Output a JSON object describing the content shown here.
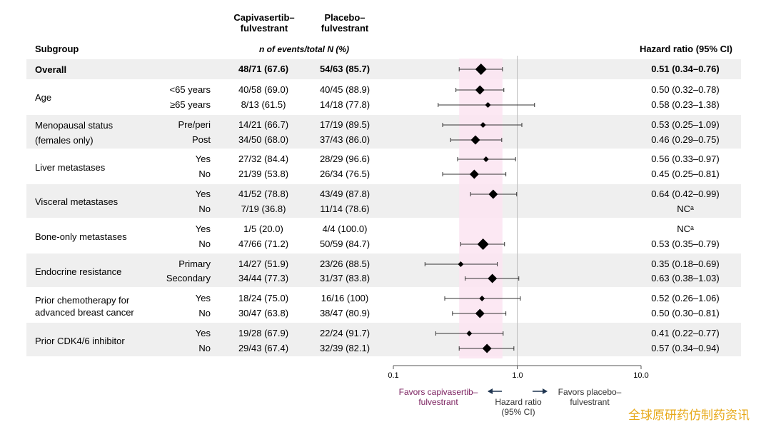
{
  "header": {
    "capi_line1": "Capivasertib–",
    "capi_line2": "fulvestrant",
    "plac_line1": "Placebo–",
    "plac_line2": "fulvestrant",
    "subgroup": "Subgroup",
    "events_label": "n of events/total N (%)",
    "hr_label": "Hazard ratio (95% CI)"
  },
  "colors": {
    "band": "#efefef",
    "shade": "#fbe4f1",
    "favors_capi": "#7a1f5e",
    "arrow": "#1f3550",
    "watermark": "#e7a817"
  },
  "chart_data": {
    "type": "forest",
    "xscale": "log",
    "xlim": [
      0.1,
      10.0
    ],
    "reference_line": 1.0,
    "shaded_band": [
      0.34,
      0.76
    ],
    "axis_ticks": [
      "0.1",
      "1.0",
      "10.0"
    ],
    "axis_title": [
      "Hazard ratio",
      "(95% CI)"
    ],
    "favors_left": [
      "Favors capivasertib–",
      "fulvestrant"
    ],
    "favors_right": [
      "Favors placebo–",
      "fulvestrant"
    ],
    "rows": [
      {
        "group": "Overall",
        "sub": "",
        "capi": "48/71 (67.6)",
        "plac": "54/63 (85.7)",
        "hr_text": "0.51 (0.34–0.76)",
        "hr": 0.51,
        "lo": 0.34,
        "hi": 0.76,
        "bold": true,
        "marker": "large"
      },
      {
        "group": "Age",
        "sub": "<65 years",
        "capi": "40/58 (69.0)",
        "plac": "40/45 (88.9)",
        "hr_text": "0.50 (0.32–0.78)",
        "hr": 0.5,
        "lo": 0.32,
        "hi": 0.78,
        "marker": "medium"
      },
      {
        "group": "",
        "sub": "≥65 years",
        "capi": "8/13 (61.5)",
        "plac": "14/18 (77.8)",
        "hr_text": "0.58 (0.23–1.38)",
        "hr": 0.58,
        "lo": 0.23,
        "hi": 1.38,
        "marker": "small"
      },
      {
        "group": "Menopausal status",
        "sub": "Pre/peri",
        "capi": "14/21 (66.7)",
        "plac": "17/19 (89.5)",
        "hr_text": "0.53 (0.25–1.09)",
        "hr": 0.53,
        "lo": 0.25,
        "hi": 1.09,
        "marker": "small"
      },
      {
        "group": "(females only)",
        "sub": "Post",
        "capi": "34/50 (68.0)",
        "plac": "37/43 (86.0)",
        "hr_text": "0.46 (0.29–0.75)",
        "hr": 0.46,
        "lo": 0.29,
        "hi": 0.75,
        "marker": "medium"
      },
      {
        "group": "Liver metastases",
        "sub": "Yes",
        "capi": "27/32 (84.4)",
        "plac": "28/29 (96.6)",
        "hr_text": "0.56 (0.33–0.97)",
        "hr": 0.56,
        "lo": 0.33,
        "hi": 0.97,
        "marker": "small"
      },
      {
        "group": "",
        "sub": "No",
        "capi": "21/39 (53.8)",
        "plac": "26/34 (76.5)",
        "hr_text": "0.45 (0.25–0.81)",
        "hr": 0.45,
        "lo": 0.25,
        "hi": 0.81,
        "marker": "medium"
      },
      {
        "group": "Visceral metastases",
        "sub": "Yes",
        "capi": "41/52 (78.8)",
        "plac": "43/49 (87.8)",
        "hr_text": "0.64 (0.42–0.99)",
        "hr": 0.64,
        "lo": 0.42,
        "hi": 0.99,
        "marker": "medium"
      },
      {
        "group": "",
        "sub": "No",
        "capi": "7/19 (36.8)",
        "plac": "11/14 (78.6)",
        "hr_text": "NCᵃ",
        "hr": null,
        "lo": null,
        "hi": null
      },
      {
        "group": "Bone-only metastases",
        "sub": "Yes",
        "capi": "1/5 (20.0)",
        "plac": "4/4 (100.0)",
        "hr_text": "NCᵃ",
        "hr": null,
        "lo": null,
        "hi": null
      },
      {
        "group": "",
        "sub": "No",
        "capi": "47/66 (71.2)",
        "plac": "50/59 (84.7)",
        "hr_text": "0.53 (0.35–0.79)",
        "hr": 0.53,
        "lo": 0.35,
        "hi": 0.79,
        "marker": "large"
      },
      {
        "group": "Endocrine resistance",
        "sub": "Primary",
        "capi": "14/27 (51.9)",
        "plac": "23/26 (88.5)",
        "hr_text": "0.35 (0.18–0.69)",
        "hr": 0.35,
        "lo": 0.18,
        "hi": 0.69,
        "marker": "small"
      },
      {
        "group": "",
        "sub": "Secondary",
        "capi": "34/44 (77.3)",
        "plac": "31/37 (83.8)",
        "hr_text": "0.63 (0.38–1.03)",
        "hr": 0.63,
        "lo": 0.38,
        "hi": 1.03,
        "marker": "medium"
      },
      {
        "group": "Prior chemotherapy for",
        "sub": "Yes",
        "capi": "18/24 (75.0)",
        "plac": "16/16 (100)",
        "hr_text": "0.52 (0.26–1.06)",
        "hr": 0.52,
        "lo": 0.26,
        "hi": 1.06,
        "marker": "small"
      },
      {
        "group": "advanced breast cancer",
        "sub": "No",
        "capi": "30/47 (63.8)",
        "plac": "38/47 (80.9)",
        "hr_text": "0.50 (0.30–0.81)",
        "hr": 0.5,
        "lo": 0.3,
        "hi": 0.81,
        "marker": "medium"
      },
      {
        "group": "Prior CDK4/6 inhibitor",
        "sub": "Yes",
        "capi": "19/28 (67.9)",
        "plac": "22/24 (91.7)",
        "hr_text": "0.41 (0.22–0.77)",
        "hr": 0.41,
        "lo": 0.22,
        "hi": 0.77,
        "marker": "small"
      },
      {
        "group": "",
        "sub": "No",
        "capi": "29/43 (67.4)",
        "plac": "32/39 (82.1)",
        "hr_text": "0.57 (0.34–0.94)",
        "hr": 0.57,
        "lo": 0.34,
        "hi": 0.94,
        "marker": "medium"
      }
    ]
  },
  "watermark": "全球原研药仿制药资讯"
}
